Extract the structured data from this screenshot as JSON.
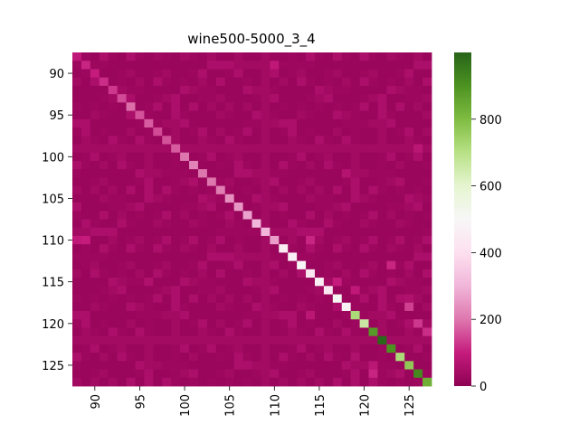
{
  "chart_data": {
    "type": "heatmap",
    "title": "wine500-5000_3_4",
    "xlabel": "",
    "ylabel": "",
    "row_start": 88,
    "row_end": 127,
    "col_start": 88,
    "col_end": 127,
    "x_ticks": [
      "90",
      "95",
      "100",
      "105",
      "110",
      "115",
      "120",
      "125"
    ],
    "y_ticks": [
      "90",
      "95",
      "100",
      "105",
      "110",
      "115",
      "120",
      "125"
    ],
    "diagonal": [
      {
        "index": 88,
        "value": 90
      },
      {
        "index": 89,
        "value": 110
      },
      {
        "index": 90,
        "value": 100
      },
      {
        "index": 91,
        "value": 120
      },
      {
        "index": 92,
        "value": 130
      },
      {
        "index": 93,
        "value": 150
      },
      {
        "index": 94,
        "value": 190
      },
      {
        "index": 95,
        "value": 160
      },
      {
        "index": 96,
        "value": 170
      },
      {
        "index": 97,
        "value": 150
      },
      {
        "index": 98,
        "value": 160
      },
      {
        "index": 99,
        "value": 170
      },
      {
        "index": 100,
        "value": 200
      },
      {
        "index": 101,
        "value": 220
      },
      {
        "index": 102,
        "value": 200
      },
      {
        "index": 103,
        "value": 200
      },
      {
        "index": 104,
        "value": 210
      },
      {
        "index": 105,
        "value": 240
      },
      {
        "index": 106,
        "value": 250
      },
      {
        "index": 107,
        "value": 270
      },
      {
        "index": 108,
        "value": 300
      },
      {
        "index": 109,
        "value": 300
      },
      {
        "index": 110,
        "value": 260
      },
      {
        "index": 111,
        "value": 450
      },
      {
        "index": 112,
        "value": 460
      },
      {
        "index": 113,
        "value": 490
      },
      {
        "index": 114,
        "value": 420
      },
      {
        "index": 115,
        "value": 450
      },
      {
        "index": 116,
        "value": 430
      },
      {
        "index": 117,
        "value": 510
      },
      {
        "index": 118,
        "value": 480
      },
      {
        "index": 119,
        "value": 720
      },
      {
        "index": 120,
        "value": 660
      },
      {
        "index": 121,
        "value": 880
      },
      {
        "index": 122,
        "value": 990
      },
      {
        "index": 123,
        "value": 900
      },
      {
        "index": 124,
        "value": 720
      },
      {
        "index": 125,
        "value": 770
      },
      {
        "index": 126,
        "value": 920
      },
      {
        "index": 127,
        "value": 830
      }
    ],
    "off_diagonal": [
      {
        "row": 88,
        "col": 97,
        "value": 30
      },
      {
        "row": 89,
        "col": 110,
        "value": 90
      },
      {
        "row": 93,
        "col": 94,
        "value": 50
      },
      {
        "row": 110,
        "col": 88,
        "value": 90
      },
      {
        "row": 110,
        "col": 89,
        "value": 100
      },
      {
        "row": 110,
        "col": 114,
        "value": 110
      },
      {
        "row": 115,
        "col": 96,
        "value": 60
      },
      {
        "row": 115,
        "col": 117,
        "value": 100
      },
      {
        "row": 116,
        "col": 119,
        "value": 90
      },
      {
        "row": 117,
        "col": 125,
        "value": 60
      },
      {
        "row": 118,
        "col": 125,
        "value": 140
      },
      {
        "row": 119,
        "col": 114,
        "value": 80
      },
      {
        "row": 120,
        "col": 126,
        "value": 130
      },
      {
        "row": 121,
        "col": 127,
        "value": 120
      },
      {
        "row": 124,
        "col": 119,
        "value": 60
      },
      {
        "row": 125,
        "col": 121,
        "value": 80
      },
      {
        "row": 126,
        "col": 121,
        "value": 110
      },
      {
        "row": 113,
        "col": 123,
        "value": 110
      },
      {
        "row": 102,
        "col": 118,
        "value": 70
      },
      {
        "row": 99,
        "col": 126,
        "value": 80
      }
    ],
    "background_value": 20,
    "colorbar": {
      "vmin": 0,
      "vmax": 1000,
      "ticks": [
        {
          "value": 0,
          "label": "0"
        },
        {
          "value": 200,
          "label": "200"
        },
        {
          "value": 400,
          "label": "400"
        },
        {
          "value": 600,
          "label": "600"
        },
        {
          "value": 800,
          "label": "800"
        }
      ],
      "colormap": "PiYG",
      "stops": [
        "#8e0152",
        "#c51b7d",
        "#de77ae",
        "#f1b6da",
        "#fde0ef",
        "#f7f7f7",
        "#e6f5d0",
        "#b8e186",
        "#7fbc41",
        "#4d9221",
        "#276419"
      ]
    },
    "grid": false
  }
}
